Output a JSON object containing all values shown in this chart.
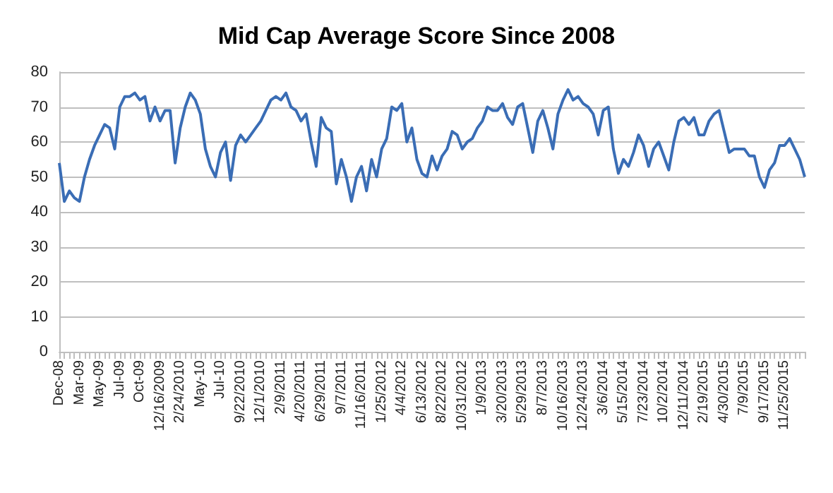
{
  "chart_data": {
    "type": "line",
    "title": "Mid Cap Average Score Since 2008",
    "categories": [
      "Dec-08",
      null,
      null,
      null,
      "Mar-09",
      null,
      null,
      null,
      "May-09",
      null,
      null,
      null,
      "Jul-09",
      null,
      null,
      null,
      "Oct-09",
      null,
      null,
      null,
      "12/16/2009",
      null,
      null,
      null,
      "2/24/2010",
      null,
      null,
      null,
      "May-10",
      null,
      null,
      null,
      "Jul-10",
      null,
      null,
      null,
      "9/22/2010",
      null,
      null,
      null,
      "12/1/2010",
      null,
      null,
      null,
      "2/9/2011",
      null,
      null,
      null,
      "4/20/2011",
      null,
      null,
      null,
      "6/29/2011",
      null,
      null,
      null,
      "9/7/2011",
      null,
      null,
      null,
      "11/16/2011",
      null,
      null,
      null,
      "1/25/2012",
      null,
      null,
      null,
      "4/4/2012",
      null,
      null,
      null,
      "6/13/2012",
      null,
      null,
      null,
      "8/22/2012",
      null,
      null,
      null,
      "10/31/2012",
      null,
      null,
      null,
      "1/9/2013",
      null,
      null,
      null,
      "3/20/2013",
      null,
      null,
      null,
      "5/29/2013",
      null,
      null,
      null,
      "8/7/2013",
      null,
      null,
      null,
      "10/16/2013",
      null,
      null,
      null,
      "12/24/2013",
      null,
      null,
      null,
      "3/6/2014",
      null,
      null,
      null,
      "5/15/2014",
      null,
      null,
      null,
      "7/23/2014",
      null,
      null,
      null,
      "10/2/2014",
      null,
      null,
      null,
      "12/11/2014",
      null,
      null,
      null,
      "2/19/2015",
      null,
      null,
      null,
      "4/30/2015",
      null,
      null,
      null,
      "7/9/2015",
      null,
      null,
      null,
      "9/17/2015",
      null,
      null,
      null,
      "11/25/2015",
      null,
      null,
      null,
      null
    ],
    "values": [
      54,
      43,
      46,
      44,
      43,
      50,
      55,
      59,
      62,
      65,
      64,
      58,
      70,
      73,
      73,
      74,
      72,
      73,
      66,
      70,
      66,
      69,
      69,
      54,
      64,
      70,
      74,
      72,
      68,
      58,
      53,
      50,
      57,
      60,
      49,
      59,
      62,
      60,
      62,
      64,
      66,
      69,
      72,
      73,
      72,
      74,
      70,
      69,
      66,
      68,
      60,
      53,
      67,
      64,
      63,
      48,
      55,
      50,
      43,
      50,
      53,
      46,
      55,
      50,
      58,
      61,
      70,
      69,
      71,
      60,
      64,
      55,
      51,
      50,
      56,
      52,
      56,
      58,
      63,
      62,
      58,
      60,
      61,
      64,
      66,
      70,
      69,
      69,
      71,
      67,
      65,
      70,
      71,
      64,
      57,
      66,
      69,
      64,
      58,
      68,
      72,
      75,
      72,
      73,
      71,
      70,
      68,
      62,
      69,
      70,
      58,
      51,
      55,
      53,
      57,
      62,
      59,
      53,
      58,
      60,
      56,
      52,
      60,
      66,
      67,
      65,
      67,
      62,
      62,
      66,
      68,
      69,
      63,
      57,
      58,
      58,
      58,
      56,
      56,
      50,
      47,
      52,
      54,
      59,
      59,
      61,
      58,
      55,
      50
    ],
    "color": "#3a6db5",
    "ylim": [
      0,
      80
    ],
    "yticks": [
      0,
      10,
      20,
      30,
      40,
      50,
      60,
      70,
      80
    ],
    "grid": "y",
    "marker": "none"
  }
}
